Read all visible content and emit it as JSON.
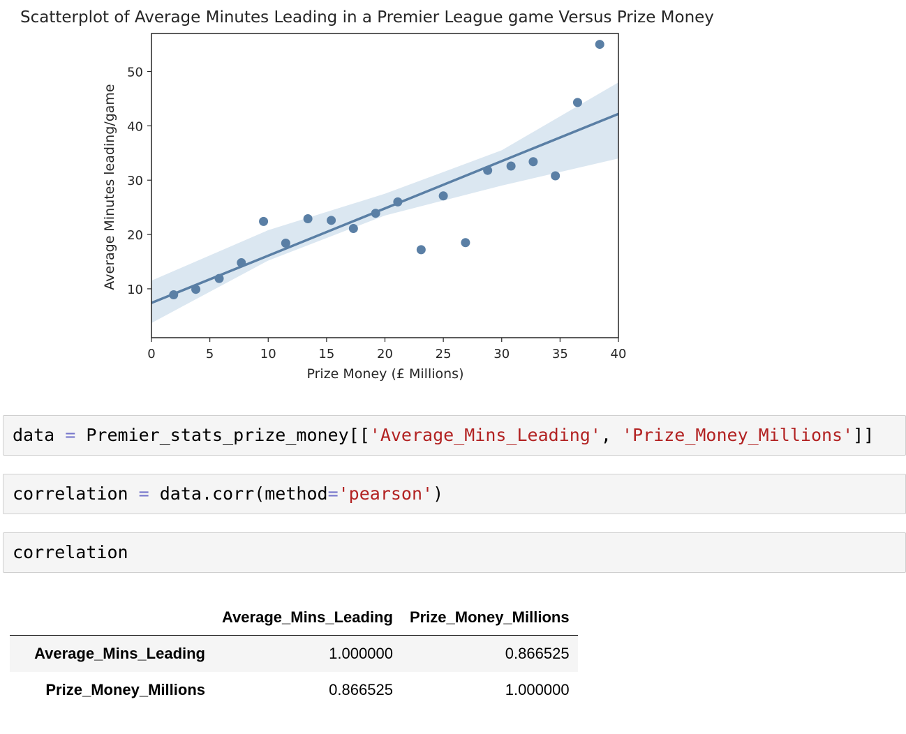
{
  "chart_data": {
    "type": "scatter",
    "title": "Scatterplot of Average Minutes Leading in a Premier League game Versus Prize Money",
    "xlabel": "Prize Money (£ Millions)",
    "ylabel": "Average Minutes leading/game",
    "xlim": [
      0,
      40
    ],
    "ylim": [
      1,
      57
    ],
    "xticks": [
      0,
      5,
      10,
      15,
      20,
      25,
      30,
      35,
      40
    ],
    "yticks": [
      10,
      20,
      30,
      40,
      50
    ],
    "grid": false,
    "points": [
      {
        "x": 1.9,
        "y": 8.9
      },
      {
        "x": 3.8,
        "y": 9.9
      },
      {
        "x": 5.8,
        "y": 11.9
      },
      {
        "x": 7.7,
        "y": 14.8
      },
      {
        "x": 9.6,
        "y": 22.4
      },
      {
        "x": 11.5,
        "y": 18.4
      },
      {
        "x": 13.4,
        "y": 22.9
      },
      {
        "x": 15.4,
        "y": 22.6
      },
      {
        "x": 17.3,
        "y": 21.1
      },
      {
        "x": 19.2,
        "y": 23.9
      },
      {
        "x": 21.1,
        "y": 26.0
      },
      {
        "x": 23.1,
        "y": 17.2
      },
      {
        "x": 25.0,
        "y": 27.1
      },
      {
        "x": 26.9,
        "y": 18.5
      },
      {
        "x": 28.8,
        "y": 31.8
      },
      {
        "x": 30.8,
        "y": 32.6
      },
      {
        "x": 32.7,
        "y": 33.4
      },
      {
        "x": 34.6,
        "y": 30.8
      },
      {
        "x": 36.5,
        "y": 44.3
      },
      {
        "x": 38.4,
        "y": 55.0
      }
    ],
    "regression": {
      "x0": 0,
      "y0": 7.4,
      "x1": 40,
      "y1": 42.2
    },
    "confidence_band": {
      "x": [
        0,
        10,
        20,
        30,
        40
      ],
      "lower": [
        3.7,
        15.2,
        23.5,
        29.0,
        34.0
      ],
      "upper": [
        11.5,
        20.8,
        27.5,
        35.5,
        48.0
      ]
    },
    "marker_color": "#5a7fa5",
    "band_color": "#dbe7f1"
  },
  "cells": [
    {
      "parts": [
        {
          "t": "data ",
          "c": ""
        },
        {
          "t": "=",
          "c": "op"
        },
        {
          "t": " Premier_stats_prize_money[[",
          "c": ""
        },
        {
          "t": "'Average_Mins_Leading'",
          "c": "str"
        },
        {
          "t": ", ",
          "c": ""
        },
        {
          "t": "'Prize_Money_Millions'",
          "c": "str"
        },
        {
          "t": "]]",
          "c": ""
        }
      ]
    },
    {
      "parts": [
        {
          "t": "correlation ",
          "c": ""
        },
        {
          "t": "=",
          "c": "op"
        },
        {
          "t": " data.corr(method",
          "c": ""
        },
        {
          "t": "=",
          "c": "op"
        },
        {
          "t": "'pearson'",
          "c": "str"
        },
        {
          "t": ")",
          "c": ""
        }
      ]
    },
    {
      "parts": [
        {
          "t": "correlation",
          "c": ""
        }
      ]
    }
  ],
  "table": {
    "corner": "",
    "columns": [
      "Average_Mins_Leading",
      "Prize_Money_Millions"
    ],
    "rows": [
      {
        "label": "Average_Mins_Leading",
        "values": [
          "1.000000",
          "0.866525"
        ]
      },
      {
        "label": "Prize_Money_Millions",
        "values": [
          "0.866525",
          "1.000000"
        ]
      }
    ]
  }
}
